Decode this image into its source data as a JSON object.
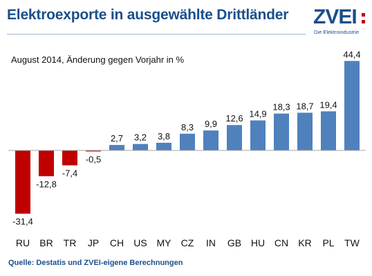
{
  "header": {
    "title": "Elektroexporte in ausgewählte Drittländer",
    "logo_text": "ZVEI",
    "logo_tagline": "Die Elektroindustrie"
  },
  "chart_data": {
    "type": "bar",
    "subtitle": "August 2014, Änderung gegen Vorjahr in %",
    "categories": [
      "RU",
      "BR",
      "TR",
      "JP",
      "CH",
      "US",
      "MY",
      "CZ",
      "IN",
      "GB",
      "HU",
      "CN",
      "KR",
      "PL",
      "TW"
    ],
    "values": [
      -31.4,
      -12.8,
      -7.4,
      -0.5,
      2.7,
      3.2,
      3.8,
      8.3,
      9.9,
      12.6,
      14.9,
      18.3,
      18.7,
      19.4,
      44.4
    ],
    "value_labels": [
      "-31,4",
      "-12,8",
      "-7,4",
      "-0,5",
      "2,7",
      "3,2",
      "3,8",
      "8,3",
      "9,9",
      "12,6",
      "14,9",
      "18,3",
      "18,7",
      "19,4",
      "44,4"
    ],
    "colors": {
      "positive": "#4f81bd",
      "negative": "#c00000"
    },
    "grid": false,
    "legend": "none"
  },
  "footer": {
    "source": "Quelle: Destatis und ZVEI-eigene Berechnungen"
  }
}
